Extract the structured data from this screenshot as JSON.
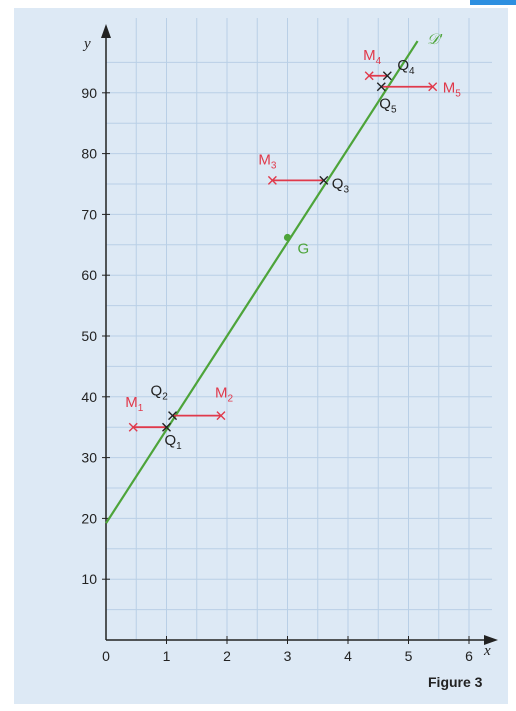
{
  "figure_caption": "Figure 3",
  "colors": {
    "page": "#ffffff",
    "panel": "#dde9f5",
    "grid": "#b9cfe6",
    "axis": "#222222",
    "line": "#4da43a",
    "point": "#e0394b",
    "projection": "#222222",
    "accent": "#2d8fe0"
  },
  "chart_data": {
    "type": "scatter",
    "title": "",
    "xlabel": "x",
    "ylabel": "y",
    "xlim": [
      0,
      6.3
    ],
    "ylim": [
      0,
      98
    ],
    "grid": true,
    "x_ticks": [
      "0",
      "1",
      "2",
      "3",
      "4",
      "5",
      "6"
    ],
    "y_ticks": [
      "10",
      "20",
      "30",
      "40",
      "50",
      "60",
      "70",
      "80",
      "90"
    ],
    "regression_line": {
      "name": "𝒟'",
      "slope": 15.4,
      "intercept": 19.2,
      "x_range": [
        0,
        5.15
      ]
    },
    "mean_point": {
      "label": "G",
      "x": 3.0,
      "y": 66.2
    },
    "points": [
      {
        "label": "M",
        "sub": "1",
        "x": 0.45,
        "y": 35.0
      },
      {
        "label": "M",
        "sub": "2",
        "x": 1.9,
        "y": 36.9
      },
      {
        "label": "M",
        "sub": "3",
        "x": 2.75,
        "y": 75.6
      },
      {
        "label": "M",
        "sub": "4",
        "x": 4.35,
        "y": 92.8
      },
      {
        "label": "M",
        "sub": "5",
        "x": 5.4,
        "y": 91.0
      }
    ],
    "projections": [
      {
        "label": "Q",
        "sub": "1",
        "x": 1.0,
        "y": 35.0
      },
      {
        "label": "Q",
        "sub": "2",
        "x": 1.1,
        "y": 36.9
      },
      {
        "label": "Q",
        "sub": "3",
        "x": 3.6,
        "y": 75.6
      },
      {
        "label": "Q",
        "sub": "4",
        "x": 4.65,
        "y": 92.8
      },
      {
        "label": "Q",
        "sub": "5",
        "x": 4.55,
        "y": 91.0
      }
    ]
  }
}
